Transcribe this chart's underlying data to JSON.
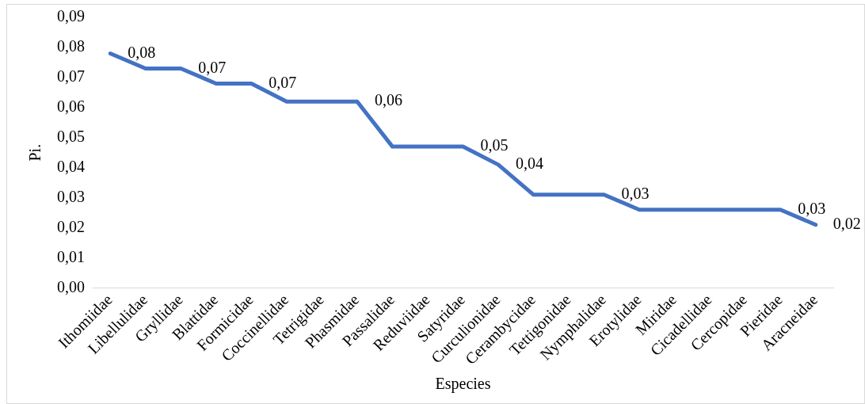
{
  "chart_data": {
    "type": "line",
    "xlabel": "Especies",
    "ylabel": "Pi.",
    "categories": [
      "Ithomiidae",
      "Libellulidae",
      "Gryllidae",
      "Blattidae",
      "Formicidae",
      "Coccinellidae",
      "Tetrigidae",
      "Phasmidae",
      "Passalidae",
      "Reduviidae",
      "Satyridae",
      "Curculionidae",
      "Cerambycidae",
      "Tettigonidae",
      "Nymphalidae",
      "Erotylidae",
      "Miridae",
      "Cicadellidae",
      "Cercopidae",
      "Pieridae",
      "Aracneidae"
    ],
    "series": [
      {
        "color": "#4472c4",
        "values": [
          0.078,
          0.073,
          0.073,
          0.068,
          0.068,
          0.062,
          0.062,
          0.062,
          0.047,
          0.047,
          0.047,
          0.041,
          0.031,
          0.031,
          0.031,
          0.026,
          0.026,
          0.026,
          0.026,
          0.026,
          0.021
        ],
        "value_labels": [
          "0,08",
          null,
          "0,07",
          null,
          "0,07",
          null,
          null,
          "0,06",
          null,
          null,
          "0,05",
          "0,04",
          null,
          null,
          "0,03",
          null,
          null,
          null,
          null,
          "0,03",
          "0,02"
        ]
      }
    ],
    "ylim": [
      0,
      0.09
    ],
    "yticks": [
      {
        "value": 0,
        "label": "0,00"
      },
      {
        "value": 0.01,
        "label": "0,01"
      },
      {
        "value": 0.02,
        "label": "0,02"
      },
      {
        "value": 0.03,
        "label": "0,03"
      },
      {
        "value": 0.04,
        "label": "0,04"
      },
      {
        "value": 0.05,
        "label": "0,05"
      },
      {
        "value": 0.06,
        "label": "0,06"
      },
      {
        "value": 0.07,
        "label": "0,07"
      },
      {
        "value": 0.08,
        "label": "0,08"
      },
      {
        "value": 0.09,
        "label": "0,09"
      }
    ],
    "grid": false,
    "legend": false,
    "marker": "none",
    "line_style": "solid"
  }
}
